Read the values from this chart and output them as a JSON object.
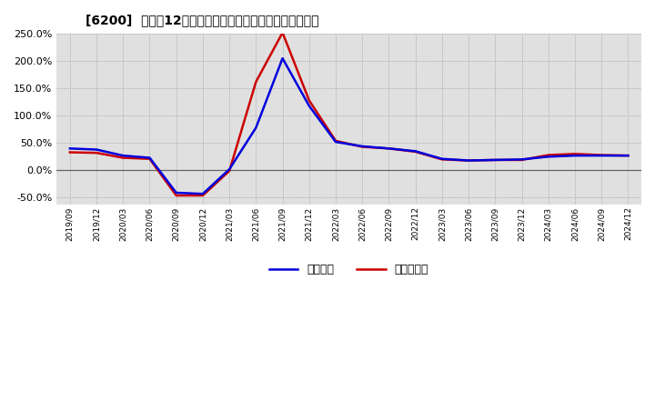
{
  "title": "[6200]  利益だ12か月移動合計の対前年同期増減率の推移",
  "legend_labels": [
    "経常利益",
    "当期純利益"
  ],
  "line_colors": [
    "#0000dd",
    "#cc0000"
  ],
  "background_color": "#ffffff",
  "plot_bg_color": "#e8e8e8",
  "grid_color": "#aaaaaa",
  "dates": [
    "2019/09",
    "2019/12",
    "2020/03",
    "2020/06",
    "2020/09",
    "2020/12",
    "2021/03",
    "2021/06",
    "2021/09",
    "2021/12",
    "2022/03",
    "2022/06",
    "2022/09",
    "2022/12",
    "2023/03",
    "2023/06",
    "2023/09",
    "2023/12",
    "2024/03",
    "2024/06",
    "2024/09",
    "2024/12"
  ],
  "ordinary_profit": [
    0.4,
    0.38,
    0.27,
    0.23,
    -0.41,
    -0.43,
    0.02,
    0.78,
    2.05,
    1.18,
    0.52,
    0.44,
    0.4,
    0.35,
    0.21,
    0.18,
    0.19,
    0.2,
    0.25,
    0.27,
    0.27,
    0.27
  ],
  "net_profit": [
    0.33,
    0.32,
    0.23,
    0.21,
    -0.46,
    -0.46,
    -0.01,
    1.62,
    2.52,
    1.28,
    0.54,
    0.43,
    0.4,
    0.34,
    0.2,
    0.18,
    0.19,
    0.19,
    0.28,
    0.3,
    0.28,
    0.27
  ],
  "yticks": [
    -0.5,
    0.0,
    0.5,
    1.0,
    1.5,
    2.0,
    2.5
  ],
  "ylim": [
    -0.62,
    0.275
  ]
}
